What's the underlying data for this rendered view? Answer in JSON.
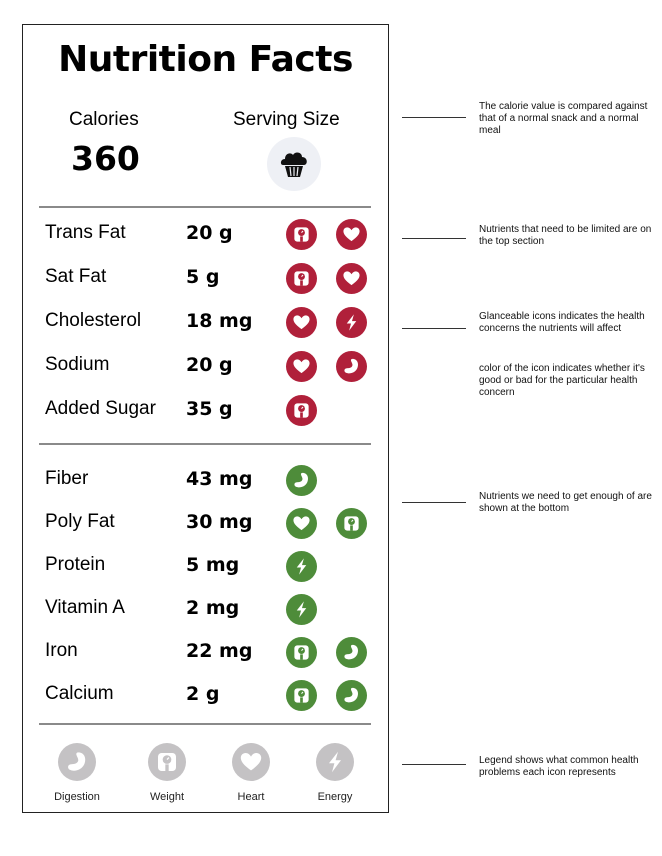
{
  "title": "Nutrition Facts",
  "calories": {
    "label": "Calories",
    "value": "360"
  },
  "serving": {
    "label": "Serving Size",
    "icon": "muffin-icon"
  },
  "colors": {
    "bad": "#b0203a",
    "good": "#4e8c3a",
    "legend": "#c4c2c4"
  },
  "limit_nutrients": [
    {
      "name": "Trans Fat",
      "amount": "20 g",
      "icons": [
        "weight",
        "heart"
      ]
    },
    {
      "name": "Sat Fat",
      "amount": "5 g",
      "icons": [
        "weight",
        "heart"
      ]
    },
    {
      "name": "Cholesterol",
      "amount": "18 mg",
      "icons": [
        "heart",
        "energy"
      ]
    },
    {
      "name": "Sodium",
      "amount": "20 g",
      "icons": [
        "heart",
        "digestion"
      ]
    },
    {
      "name": "Added Sugar",
      "amount": "35 g",
      "icons": [
        "weight"
      ]
    }
  ],
  "good_nutrients": [
    {
      "name": "Fiber",
      "amount": "43 mg",
      "icons": [
        "digestion"
      ]
    },
    {
      "name": "Poly Fat",
      "amount": "30 mg",
      "icons": [
        "heart",
        "weight"
      ]
    },
    {
      "name": "Protein",
      "amount": "5 mg",
      "icons": [
        "energy"
      ]
    },
    {
      "name": "Vitamin A",
      "amount": "2 mg",
      "icons": [
        "energy"
      ]
    },
    {
      "name": "Iron",
      "amount": "22 mg",
      "icons": [
        "weight",
        "digestion"
      ]
    },
    {
      "name": "Calcium",
      "amount": "2 g",
      "icons": [
        "weight",
        "digestion"
      ]
    }
  ],
  "legend": [
    {
      "label": "Digestion",
      "icon": "digestion"
    },
    {
      "label": "Weight",
      "icon": "weight"
    },
    {
      "label": "Heart",
      "icon": "heart"
    },
    {
      "label": "Energy",
      "icon": "energy"
    }
  ],
  "annotations": [
    "The calorie value is compared against that of a normal snack and a normal meal",
    "Nutrients that need to be limited are on the top section",
    "Glanceable icons indicates the health concerns the nutrients will affect",
    "color of the icon indicates whether it's good or bad for the particular health concern",
    "Nutrients we need to get enough of are shown at the bottom",
    "Legend shows what common health problems each icon represents"
  ]
}
